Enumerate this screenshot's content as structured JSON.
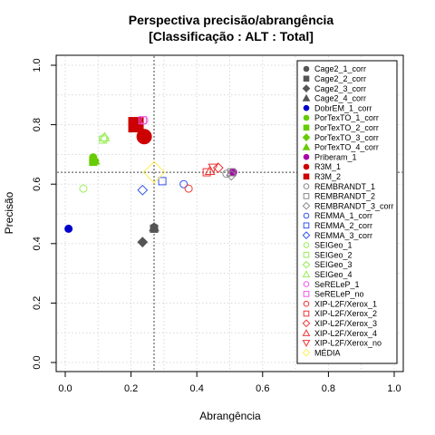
{
  "chart_data": {
    "type": "scatter",
    "title_line1": "Perspectiva precisão/abrangência",
    "title_line2": "[Classificação : ALT : Total]",
    "xlabel": "Abrangência",
    "ylabel": "Precisão",
    "xlim": [
      0,
      1
    ],
    "ylim": [
      0,
      1
    ],
    "x_ticks": [
      "0.0",
      "0.2",
      "0.4",
      "0.6",
      "0.8",
      "1.0"
    ],
    "y_ticks": [
      "0.0",
      "0.2",
      "0.4",
      "0.6",
      "0.8",
      "1.0"
    ],
    "grid": true,
    "reference_lines": {
      "x": 0.27,
      "y": 0.64
    },
    "legend_position": "right",
    "series": [
      {
        "name": "Cage2_1_corr",
        "color": "#555555",
        "shape": "circle-filled",
        "x": 0.27,
        "y": 0.455
      },
      {
        "name": "Cage2_2_corr",
        "color": "#555555",
        "shape": "square-filled",
        "x": 0.27,
        "y": 0.45
      },
      {
        "name": "Cage2_3_corr",
        "color": "#555555",
        "shape": "diamond-filled",
        "x": 0.235,
        "y": 0.405
      },
      {
        "name": "Cage2_4_corr",
        "color": "#555555",
        "shape": "triangle-filled",
        "x": 0.27,
        "y": 0.455
      },
      {
        "name": "DobrEM_1_corr",
        "color": "#0000cc",
        "shape": "circle-filled",
        "x": 0.01,
        "y": 0.45
      },
      {
        "name": "PorTexTO_1_corr",
        "color": "#66cc00",
        "shape": "circle-filled",
        "x": 0.085,
        "y": 0.69
      },
      {
        "name": "PorTexTO_2_corr",
        "color": "#66cc00",
        "shape": "square-filled",
        "x": 0.085,
        "y": 0.675
      },
      {
        "name": "PorTexTO_3_corr",
        "color": "#66cc00",
        "shape": "diamond-filled",
        "x": 0.088,
        "y": 0.68
      },
      {
        "name": "PorTexTO_4_corr",
        "color": "#66cc00",
        "shape": "triangle-filled",
        "x": 0.09,
        "y": 0.68
      },
      {
        "name": "Priberam_1",
        "color": "#aa00aa",
        "shape": "circle-filled",
        "x": 0.51,
        "y": 0.64
      },
      {
        "name": "R3M_1",
        "color": "#cc0000",
        "shape": "circle-filled",
        "x": 0.24,
        "y": 0.76
      },
      {
        "name": "R3M_2",
        "color": "#cc0000",
        "shape": "square-filled",
        "x": 0.215,
        "y": 0.8
      },
      {
        "name": "REMBRANDT_1",
        "color": "#888888",
        "shape": "circle-open",
        "x": 0.49,
        "y": 0.635
      },
      {
        "name": "REMBRANDT_2",
        "color": "#888888",
        "shape": "square-open",
        "x": 0.505,
        "y": 0.64
      },
      {
        "name": "REMBRANDT_3_corr",
        "color": "#888888",
        "shape": "diamond-open",
        "x": 0.505,
        "y": 0.63
      },
      {
        "name": "REMMA_1_corr",
        "color": "#3355ee",
        "shape": "circle-open",
        "x": 0.36,
        "y": 0.6
      },
      {
        "name": "REMMA_2_corr",
        "color": "#3355ee",
        "shape": "square-open",
        "x": 0.295,
        "y": 0.61
      },
      {
        "name": "REMMA_3_corr",
        "color": "#3355ee",
        "shape": "diamond-open",
        "x": 0.235,
        "y": 0.58
      },
      {
        "name": "SEIGeo_1",
        "color": "#99ee55",
        "shape": "circle-open",
        "x": 0.055,
        "y": 0.585
      },
      {
        "name": "SEIGeo_2",
        "color": "#99ee55",
        "shape": "square-open",
        "x": 0.115,
        "y": 0.75
      },
      {
        "name": "SEIGeo_3",
        "color": "#99ee55",
        "shape": "diamond-open",
        "x": 0.118,
        "y": 0.755
      },
      {
        "name": "SEIGeo_4",
        "color": "#99ee55",
        "shape": "triangle-open",
        "x": 0.12,
        "y": 0.758
      },
      {
        "name": "SeRELeP_1",
        "color": "#ee55ee",
        "shape": "circle-open",
        "x": 0.24,
        "y": 0.815
      },
      {
        "name": "SeRELeP_no",
        "color": "#ee55ee",
        "shape": "square-open",
        "x": 0.235,
        "y": 0.815
      },
      {
        "name": "XIP-L2F/Xerox_1",
        "color": "#ee3333",
        "shape": "circle-open",
        "x": 0.375,
        "y": 0.585
      },
      {
        "name": "XIP-L2F/Xerox_2",
        "color": "#ee3333",
        "shape": "square-open",
        "x": 0.43,
        "y": 0.64
      },
      {
        "name": "XIP-L2F/Xerox_3",
        "color": "#ee3333",
        "shape": "diamond-open",
        "x": 0.465,
        "y": 0.655
      },
      {
        "name": "XIP-L2F/Xerox_4",
        "color": "#ee3333",
        "shape": "triangle-open",
        "x": 0.44,
        "y": 0.645
      },
      {
        "name": "XIP-L2F/Xerox_no",
        "color": "#ee3333",
        "shape": "triangle-down-open",
        "x": 0.45,
        "y": 0.655
      },
      {
        "name": "MÉDIA",
        "color": "#ffee55",
        "shape": "diamond-open",
        "x": 0.27,
        "y": 0.64
      }
    ]
  }
}
